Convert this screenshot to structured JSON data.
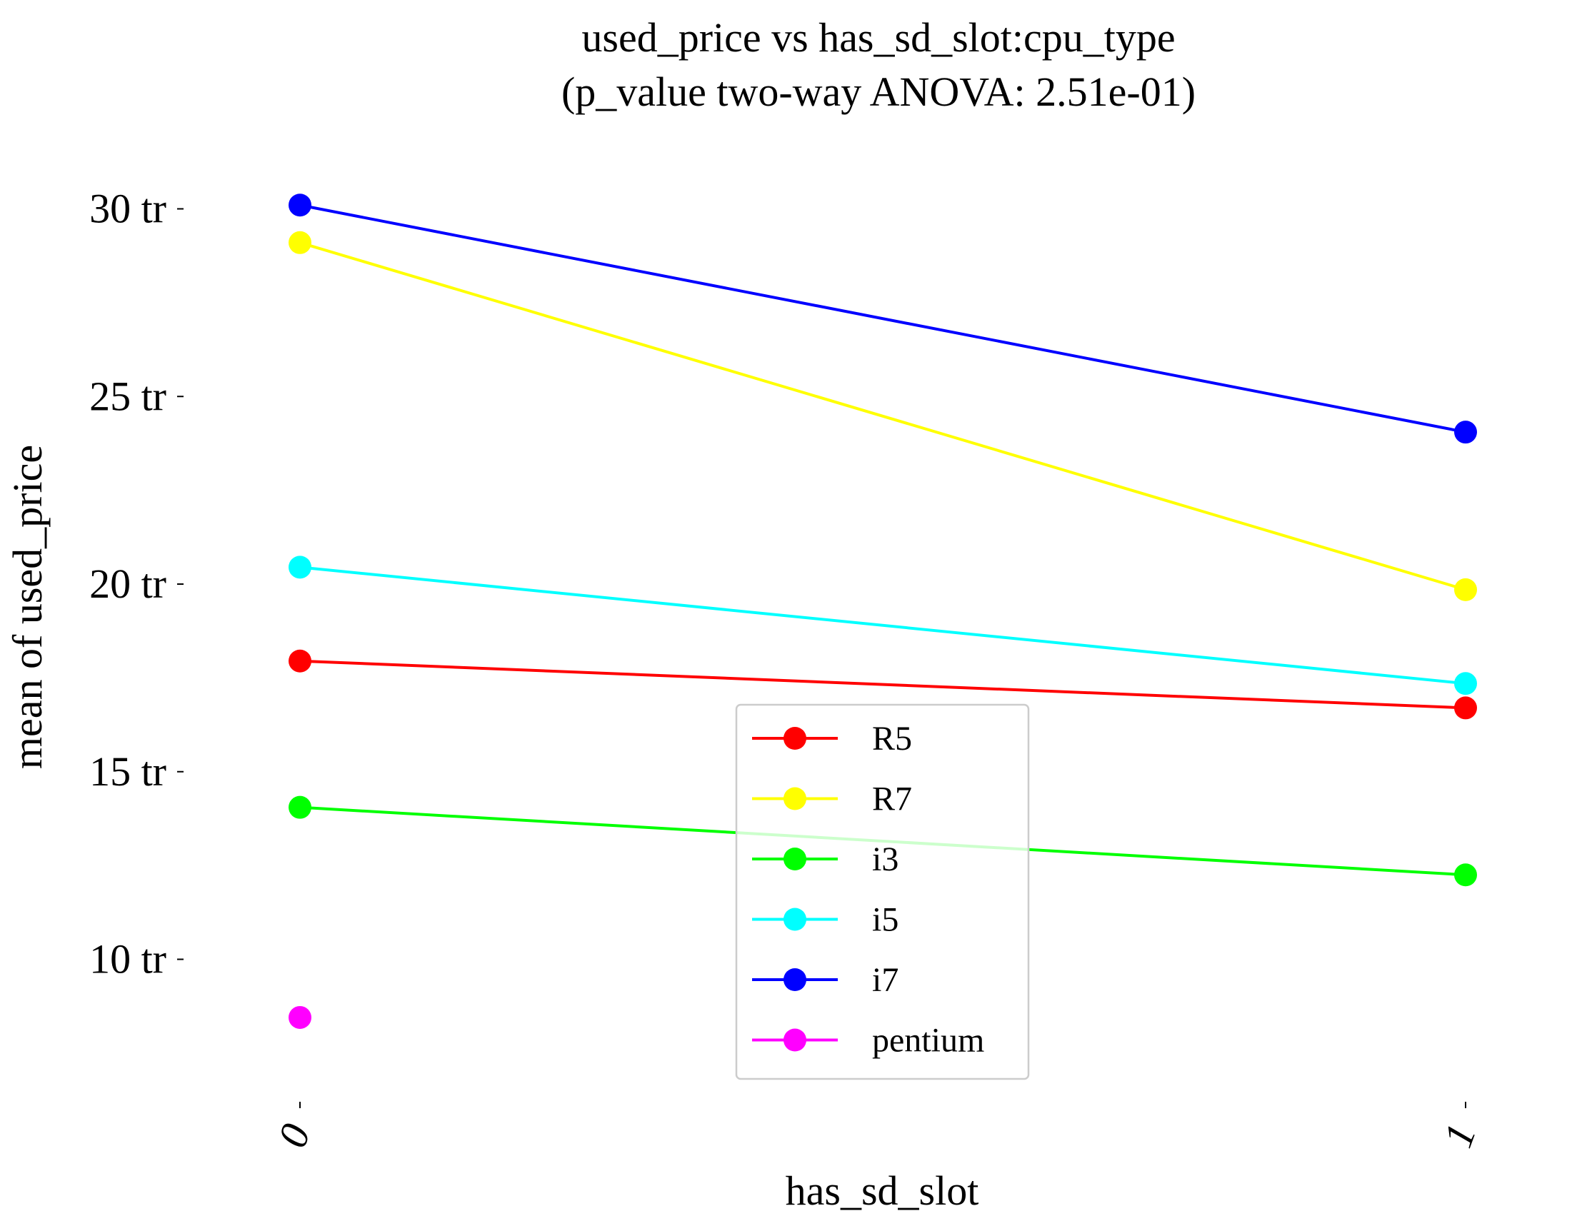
{
  "chart_data": {
    "type": "line",
    "title_line1": "used_price vs has_sd_slot:cpu_type",
    "title_line2": "(p_value two-way ANOVA: 2.51e-01)",
    "xlabel": "has_sd_slot",
    "ylabel": "mean of used_price",
    "x_categories": [
      "0",
      "1"
    ],
    "yticks": [
      {
        "value": 10,
        "label": "10 tr"
      },
      {
        "value": 15,
        "label": "15 tr"
      },
      {
        "value": 20,
        "label": "20 tr"
      },
      {
        "value": 25,
        "label": "25 tr"
      },
      {
        "value": 30,
        "label": "30 tr"
      }
    ],
    "ylim": [
      6.5,
      33.0
    ],
    "grid": false,
    "legend_position": "lower-center",
    "series": [
      {
        "name": "R5",
        "color": "#ff0000",
        "values": [
          17.95,
          16.7
        ]
      },
      {
        "name": "R7",
        "color": "#ffff00",
        "values": [
          29.1,
          19.85
        ]
      },
      {
        "name": "i3",
        "color": "#00ff00",
        "values": [
          14.05,
          12.25
        ]
      },
      {
        "name": "i5",
        "color": "#00ffff",
        "values": [
          20.45,
          17.35
        ]
      },
      {
        "name": "i7",
        "color": "#0000ff",
        "values": [
          30.1,
          24.05
        ]
      },
      {
        "name": "pentium",
        "color": "#ff00ff",
        "values": [
          8.45,
          null
        ]
      }
    ]
  }
}
